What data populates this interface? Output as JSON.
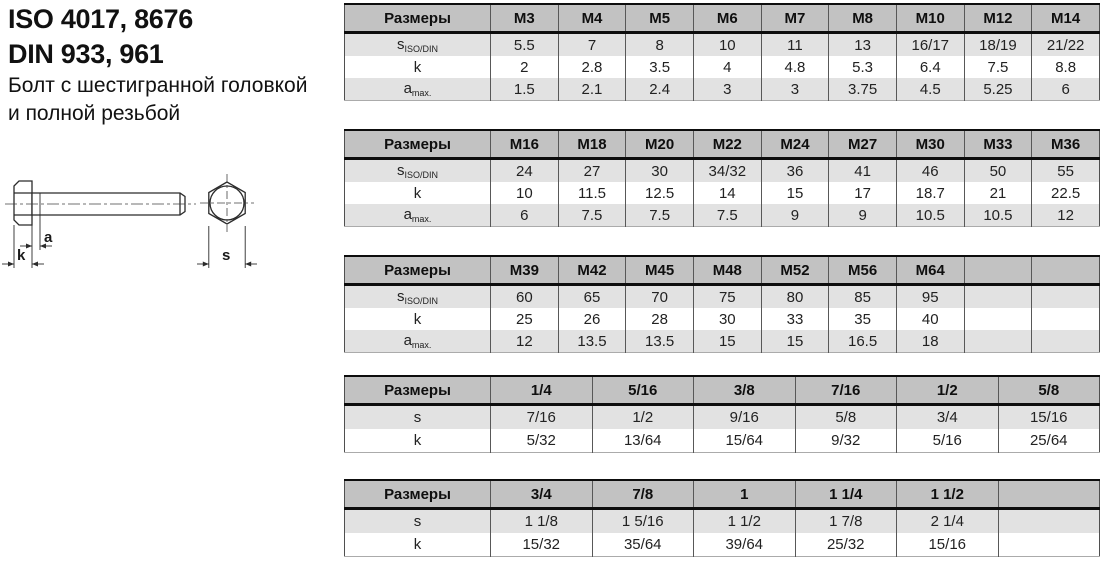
{
  "header": {
    "title_line1": "ISO 4017, 8676",
    "title_line2": "DIN 933, 961",
    "subtitle_line1": "Болт с шестигранной головкой",
    "subtitle_line2": "и полной резьбой"
  },
  "drawing": {
    "dim_a": "a",
    "dim_k": "k",
    "dim_s": "s"
  },
  "colors": {
    "table_header_bg": "#c2c2c2",
    "row_alt_bg": "#e2e2e2",
    "row_bg": "#ffffff",
    "border_dark": "#0d0d0d",
    "divider": "#585858"
  },
  "tables": [
    {
      "corner_label": "Размеры",
      "columns": [
        "M3",
        "M4",
        "M5",
        "M6",
        "M7",
        "M8",
        "M10",
        "M12",
        "M14"
      ],
      "rows": [
        {
          "label_base": "s",
          "label_sub": "ISO/DIN",
          "values": [
            "5.5",
            "7",
            "8",
            "10",
            "11",
            "13",
            "16/17",
            "18/19",
            "21/22"
          ]
        },
        {
          "label_base": "k",
          "label_sub": "",
          "values": [
            "2",
            "2.8",
            "3.5",
            "4",
            "4.8",
            "5.3",
            "6.4",
            "7.5",
            "8.8"
          ]
        },
        {
          "label_base": "a",
          "label_sub": "max.",
          "values": [
            "1.5",
            "2.1",
            "2.4",
            "3",
            "3",
            "3.75",
            "4.5",
            "5.25",
            "6"
          ]
        }
      ]
    },
    {
      "corner_label": "Размеры",
      "columns": [
        "M16",
        "M18",
        "M20",
        "M22",
        "M24",
        "M27",
        "M30",
        "M33",
        "M36"
      ],
      "rows": [
        {
          "label_base": "s",
          "label_sub": "ISO/DIN",
          "values": [
            "24",
            "27",
            "30",
            "34/32",
            "36",
            "41",
            "46",
            "50",
            "55"
          ]
        },
        {
          "label_base": "k",
          "label_sub": "",
          "values": [
            "10",
            "11.5",
            "12.5",
            "14",
            "15",
            "17",
            "18.7",
            "21",
            "22.5"
          ]
        },
        {
          "label_base": "a",
          "label_sub": "max.",
          "values": [
            "6",
            "7.5",
            "7.5",
            "7.5",
            "9",
            "9",
            "10.5",
            "10.5",
            "12"
          ]
        }
      ]
    },
    {
      "corner_label": "Размеры",
      "columns": [
        "M39",
        "M42",
        "M45",
        "M48",
        "M52",
        "M56",
        "M64",
        "",
        ""
      ],
      "rows": [
        {
          "label_base": "s",
          "label_sub": "ISO/DIN",
          "values": [
            "60",
            "65",
            "70",
            "75",
            "80",
            "85",
            "95",
            "",
            ""
          ]
        },
        {
          "label_base": "k",
          "label_sub": "",
          "values": [
            "25",
            "26",
            "28",
            "30",
            "33",
            "35",
            "40",
            "",
            ""
          ]
        },
        {
          "label_base": "a",
          "label_sub": "max.",
          "values": [
            "12",
            "13.5",
            "13.5",
            "15",
            "15",
            "16.5",
            "18",
            "",
            ""
          ]
        }
      ]
    },
    {
      "corner_label": "Размеры",
      "columns": [
        "1/4",
        "5/16",
        "3/8",
        "7/16",
        "1/2",
        "5/8"
      ],
      "rows": [
        {
          "label_base": "s",
          "label_sub": "",
          "values": [
            "7/16",
            "1/2",
            "9/16",
            "5/8",
            "3/4",
            "15/16"
          ]
        },
        {
          "label_base": "k",
          "label_sub": "",
          "values": [
            "5/32",
            "13/64",
            "15/64",
            "9/32",
            "5/16",
            "25/64"
          ]
        }
      ]
    },
    {
      "corner_label": "Размеры",
      "columns": [
        "3/4",
        "7/8",
        "1",
        "1 1/4",
        "1 1/2",
        ""
      ],
      "rows": [
        {
          "label_base": "s",
          "label_sub": "",
          "values": [
            "1 1/8",
            "1 5/16",
            "1 1/2",
            "1 7/8",
            "2 1/4",
            ""
          ]
        },
        {
          "label_base": "k",
          "label_sub": "",
          "values": [
            "15/32",
            "35/64",
            "39/64",
            "25/32",
            "15/16",
            ""
          ]
        }
      ]
    }
  ]
}
